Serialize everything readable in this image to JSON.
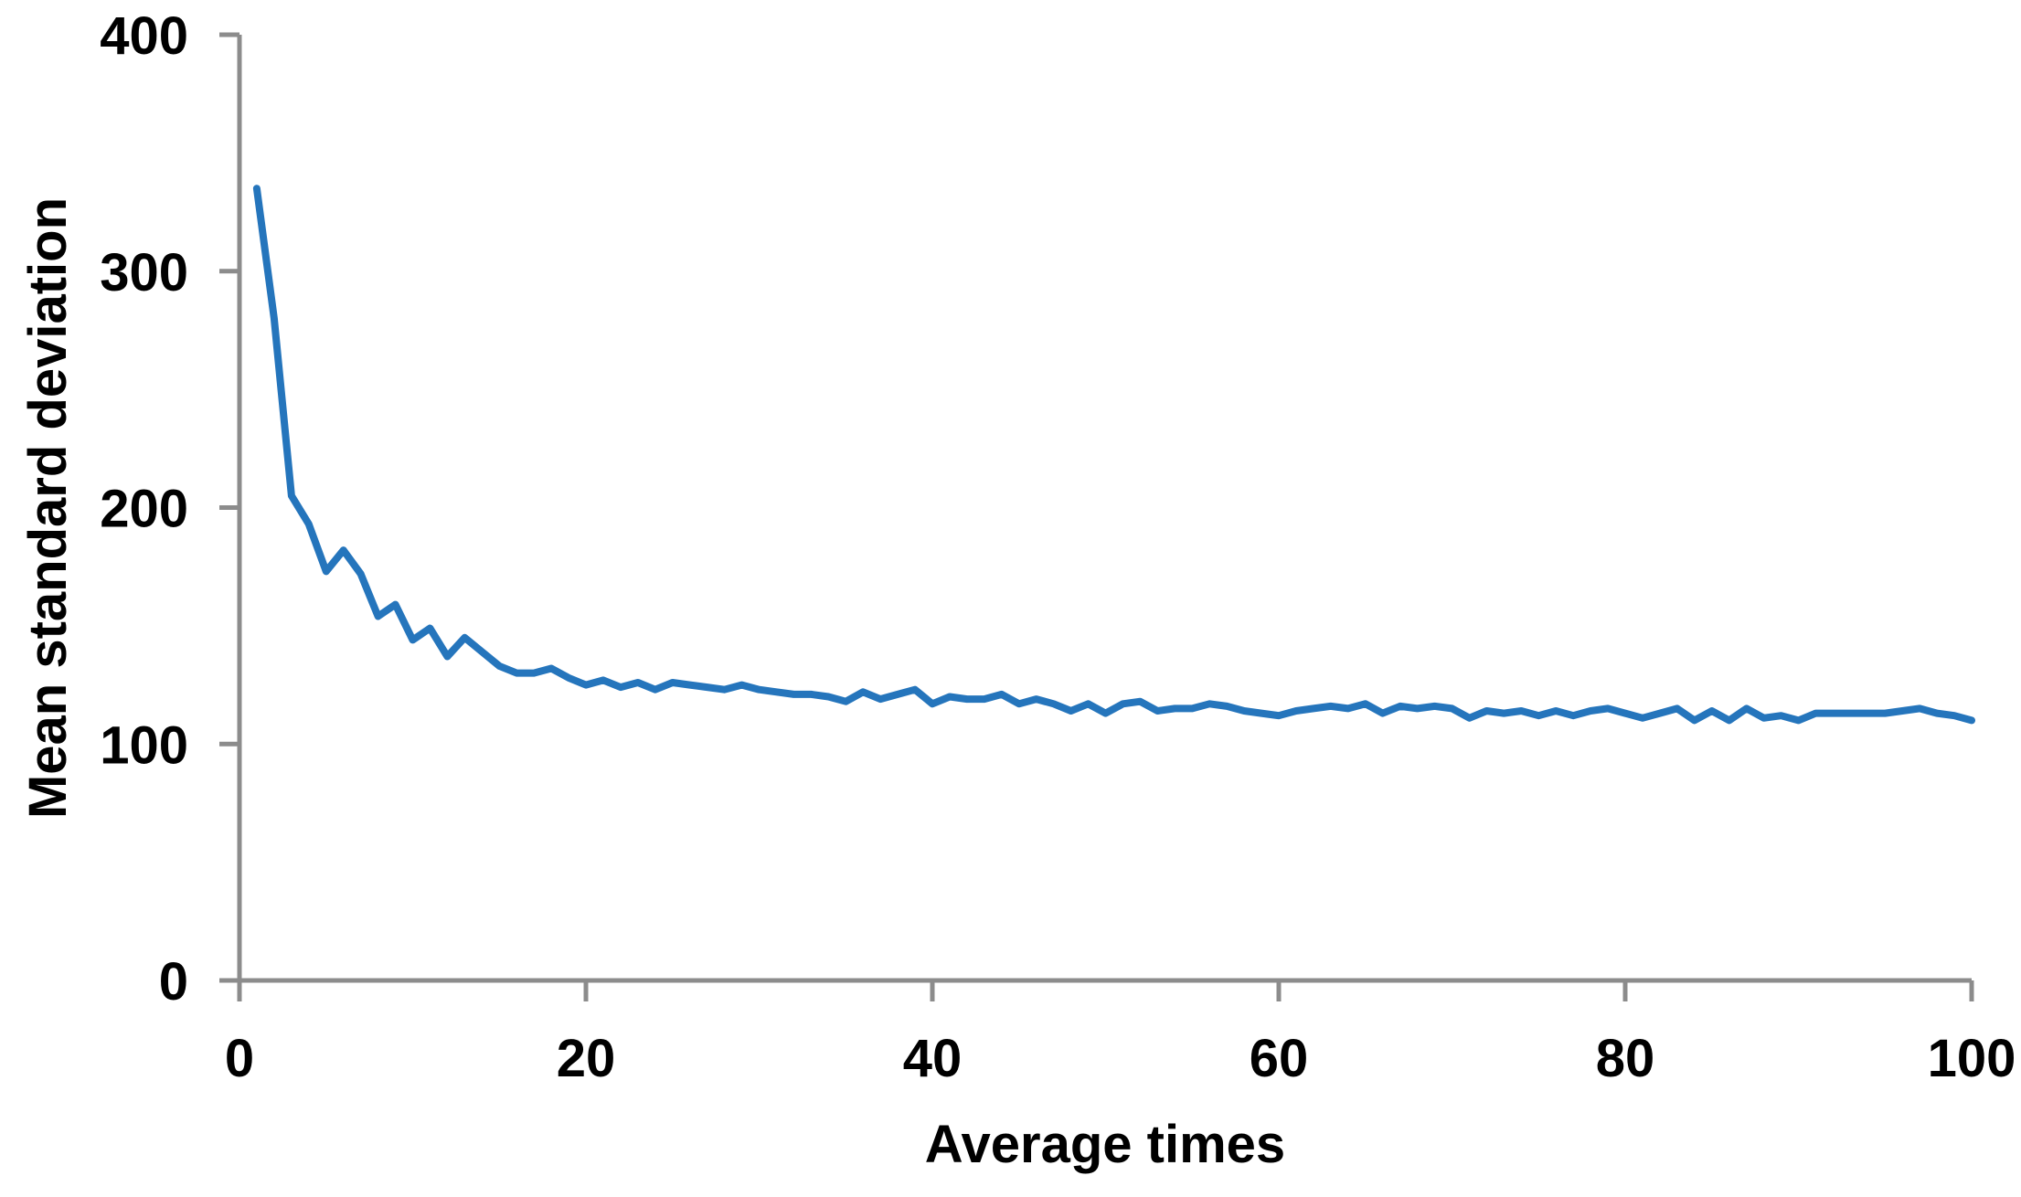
{
  "chart_data": {
    "type": "line",
    "title": "",
    "xlabel": "Average times",
    "ylabel": "Mean standard deviation",
    "xlim": [
      0,
      100
    ],
    "ylim": [
      0,
      400
    ],
    "x_ticks": [
      0,
      20,
      40,
      60,
      80,
      100
    ],
    "y_ticks": [
      0,
      100,
      200,
      300,
      400
    ],
    "grid": false,
    "legend_position": "none",
    "line_color": "#2575BC",
    "axis_color": "#8C8C8C",
    "text_color": "#000000",
    "series": [
      {
        "name": "Mean standard deviation",
        "x_start": 1,
        "x_step": 1,
        "values": [
          335,
          280,
          205,
          193,
          173,
          182,
          172,
          154,
          159,
          144,
          149,
          137,
          145,
          139,
          133,
          130,
          130,
          132,
          128,
          125,
          127,
          124,
          126,
          123,
          126,
          125,
          124,
          123,
          125,
          123,
          122,
          121,
          121,
          120,
          118,
          122,
          119,
          121,
          123,
          117,
          120,
          119,
          119,
          121,
          117,
          119,
          117,
          114,
          117,
          113,
          117,
          118,
          114,
          115,
          115,
          117,
          116,
          114,
          113,
          112,
          114,
          115,
          116,
          115,
          117,
          113,
          116,
          115,
          116,
          115,
          111,
          114,
          113,
          114,
          112,
          114,
          112,
          114,
          115,
          113,
          111,
          113,
          115,
          110,
          114,
          110,
          115,
          111,
          112,
          110,
          113,
          113,
          113,
          113,
          113,
          114,
          115,
          113,
          112,
          110
        ]
      }
    ]
  }
}
